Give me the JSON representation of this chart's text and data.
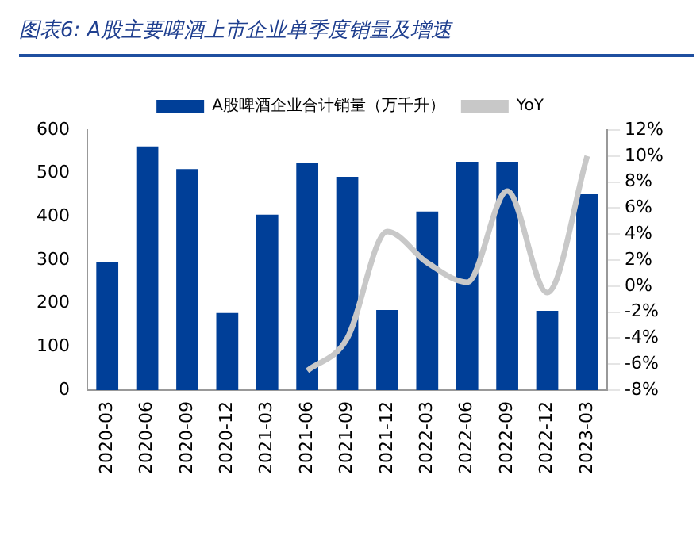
{
  "chart_data": {
    "type": "bar",
    "title": "图表6: A股主要啤酒上市企业单季度销量及增速",
    "categories": [
      "2020-03",
      "2020-06",
      "2020-09",
      "2020-12",
      "2021-03",
      "2021-06",
      "2021-09",
      "2021-12",
      "2022-03",
      "2022-06",
      "2022-09",
      "2022-12",
      "2023-03"
    ],
    "series": [
      {
        "name": "A股啤酒企业合计销量（万千升）",
        "color": "#003f98",
        "values": [
          295,
          562,
          510,
          178,
          405,
          525,
          492,
          185,
          412,
          527,
          527,
          183,
          452
        ]
      },
      {
        "name": "YoY",
        "type": "line",
        "axis": "y2",
        "color": "#c8c8c8",
        "values": [
          null,
          null,
          null,
          null,
          null,
          -6.5,
          -4,
          4.2,
          1.8,
          0.3,
          7.3,
          -0.5,
          10
        ]
      }
    ],
    "ylim": [
      0,
      600
    ],
    "yticks": [
      0,
      100,
      200,
      300,
      400,
      500,
      600
    ],
    "y2lim": [
      -8,
      12
    ],
    "y2ticks": [
      {
        "value": -8,
        "label": "-8%"
      },
      {
        "value": -6,
        "label": "-6%"
      },
      {
        "value": -4,
        "label": "-4%"
      },
      {
        "value": -2,
        "label": "-2%"
      },
      {
        "value": 0,
        "label": "0%"
      },
      {
        "value": 2,
        "label": "2%"
      },
      {
        "value": 4,
        "label": "4%"
      },
      {
        "value": 6,
        "label": "6%"
      },
      {
        "value": 8,
        "label": "8%"
      },
      {
        "value": 10,
        "label": "10%"
      },
      {
        "value": 12,
        "label": "12%"
      }
    ],
    "legend": "top",
    "grid": false,
    "marker": "none"
  }
}
